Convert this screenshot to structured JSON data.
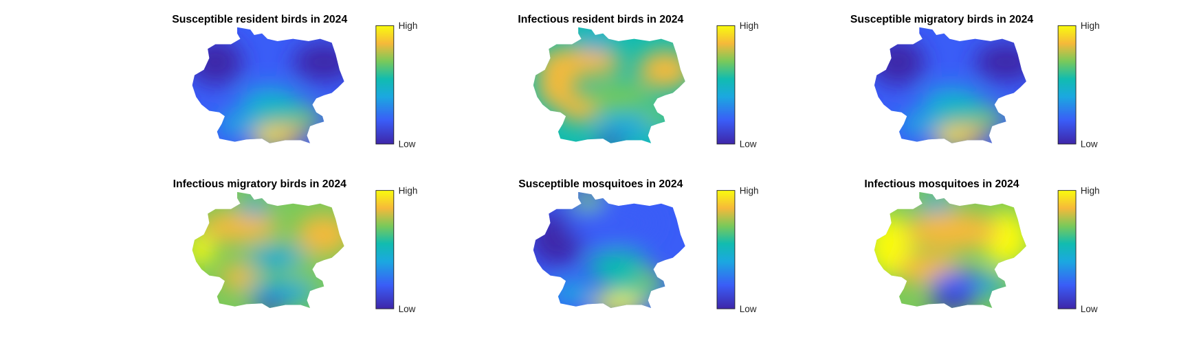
{
  "panels": [
    {
      "title": "Susceptible resident birds in 2024",
      "colorbar": {
        "high": "High",
        "low": "Low"
      }
    },
    {
      "title": "Infectious resident birds in 2024",
      "colorbar": {
        "high": "High",
        "low": "Low"
      }
    },
    {
      "title": "Susceptible migratory birds in 2024",
      "colorbar": {
        "high": "High",
        "low": "Low"
      }
    },
    {
      "title": "Infectious migratory birds in 2024",
      "colorbar": {
        "high": "High",
        "low": "Low"
      }
    },
    {
      "title": "Susceptible mosquitoes in 2024",
      "colorbar": {
        "high": "High",
        "low": "Low"
      }
    },
    {
      "title": "Infectious mosquitoes in 2024",
      "colorbar": {
        "high": "High",
        "low": "Low"
      }
    }
  ]
}
